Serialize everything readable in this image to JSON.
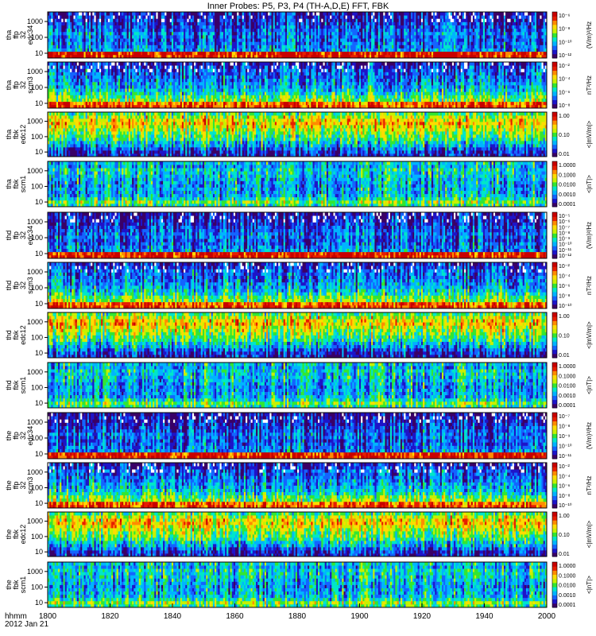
{
  "title": "Inner Probes: P5, P3, P4 (TH-A,D,E) FFT, FBK",
  "time_axis": {
    "label_line1": "hhmm",
    "label_line2": "2012 Jan 21",
    "ticks": [
      "1800",
      "1820",
      "1840",
      "1860",
      "1880",
      "1900",
      "1920",
      "1940",
      "2000"
    ],
    "range": [
      "1800",
      "2000"
    ]
  },
  "panels": [
    {
      "probe": "tha",
      "label": [
        "tha",
        "ffp",
        "32",
        "edc34"
      ],
      "kind": "fft-e",
      "yticks": [
        "1000",
        "100",
        "10"
      ],
      "cbar": [
        "10^-6",
        "10^-8",
        "10^-10",
        "10^-12"
      ],
      "cbar_label": "(V/m)^2/Hz"
    },
    {
      "probe": "tha",
      "label": [
        "tha",
        "ffp",
        "32",
        "scm3"
      ],
      "kind": "fft-b",
      "yticks": [
        "1000",
        "100",
        "10"
      ],
      "cbar": [
        "10^-2",
        "10^-4",
        "10^-6",
        "10^-8"
      ],
      "cbar_label": "nT^2/Hz"
    },
    {
      "probe": "tha",
      "label": [
        "tha",
        "fbk",
        "edc12"
      ],
      "kind": "fbk-e",
      "yticks": [
        "1000",
        "100",
        "10"
      ],
      "cbar": [
        "1.00",
        "0.10",
        "0.01"
      ],
      "cbar_label": "<|mV/m|>"
    },
    {
      "probe": "tha",
      "label": [
        "tha",
        "fbk",
        "scm1"
      ],
      "kind": "fbk-b",
      "yticks": [
        "1000",
        "100",
        "10"
      ],
      "cbar": [
        "1.0000",
        "0.1000",
        "0.0100",
        "0.0010",
        "0.0001"
      ],
      "cbar_label": "<|nT|>"
    },
    {
      "probe": "thd",
      "label": [
        "thd",
        "ffp",
        "32",
        "edc34"
      ],
      "kind": "fft-e",
      "yticks": [
        "1000",
        "100",
        "10"
      ],
      "cbar": [
        "10^-5",
        "10^-6",
        "10^-7",
        "10^-8",
        "10^-9",
        "10^-10",
        "10^-11",
        "10^-12"
      ],
      "cbar_label": "(V/m)^2/Hz"
    },
    {
      "probe": "thd",
      "label": [
        "thd",
        "ffp",
        "32",
        "scm3"
      ],
      "kind": "fft-b",
      "yticks": [
        "1000",
        "100",
        "10"
      ],
      "cbar": [
        "10^-2",
        "10^-4",
        "10^-6",
        "10^-8",
        "10^-10"
      ],
      "cbar_label": "nT^2/Hz"
    },
    {
      "probe": "thd",
      "label": [
        "thd",
        "fbk",
        "edc12"
      ],
      "kind": "fbk-e",
      "yticks": [
        "1000",
        "100",
        "10"
      ],
      "cbar": [
        "1.00",
        "0.10",
        "0.01"
      ],
      "cbar_label": "<|mV/m|>"
    },
    {
      "probe": "thd",
      "label": [
        "thd",
        "fbk",
        "scm1"
      ],
      "kind": "fbk-b",
      "yticks": [
        "1000",
        "100",
        "10"
      ],
      "cbar": [
        "1.0000",
        "0.1000",
        "0.0100",
        "0.0010",
        "0.0001"
      ],
      "cbar_label": "<|nT|>"
    },
    {
      "probe": "the",
      "label": [
        "the",
        "ffp",
        "32",
        "edc34"
      ],
      "kind": "fft-e",
      "yticks": [
        "1000",
        "100",
        "10"
      ],
      "cbar": [
        "10^-7",
        "10^-8",
        "10^-9",
        "10^-10",
        "10^-11"
      ],
      "cbar_label": "(V/m)^2/Hz"
    },
    {
      "probe": "the",
      "label": [
        "the",
        "ffp",
        "32",
        "scm3"
      ],
      "kind": "fft-b",
      "yticks": [
        "1000",
        "100",
        "10"
      ],
      "cbar": [
        "10^-2",
        "10^-4",
        "10^-6",
        "10^-8",
        "10^-10"
      ],
      "cbar_label": "nT^2/Hz"
    },
    {
      "probe": "the",
      "label": [
        "the",
        "fbk",
        "edc12"
      ],
      "kind": "fbk-e",
      "yticks": [
        "1000",
        "100",
        "10"
      ],
      "cbar": [
        "1.00",
        "0.10",
        "0.01"
      ],
      "cbar_label": "<|mV/m|>"
    },
    {
      "probe": "the",
      "label": [
        "the",
        "fbk",
        "scm1"
      ],
      "kind": "fbk-b",
      "yticks": [
        "1000",
        "100",
        "10"
      ],
      "cbar": [
        "1.0000",
        "0.1000",
        "0.0100",
        "0.0010",
        "0.0001"
      ],
      "cbar_label": "<|nT|>"
    }
  ],
  "colors": {
    "colormap": [
      "#3a0066",
      "#1e14c8",
      "#1464ff",
      "#00b4ff",
      "#00e6c8",
      "#32e632",
      "#c8f000",
      "#ffdc00",
      "#ff8c00",
      "#e61e00",
      "#c80000"
    ],
    "missing": "#ffffff",
    "frame": "#000000"
  },
  "chart_data": {
    "type": "heatmap",
    "title": "Inner Probes: P5, P3, P4 (TH-A,D,E) FFT, FBK",
    "x": {
      "label": "hhmm 2012 Jan 21",
      "range": [
        "1800",
        "2000"
      ],
      "ticks": [
        "1800",
        "1820",
        "1840",
        "1860",
        "1880",
        "1900",
        "1920",
        "1940",
        "2000"
      ]
    },
    "y": {
      "scale": "log",
      "range": [
        5,
        4000
      ],
      "ticks": [
        10,
        100,
        1000
      ]
    },
    "colorbar_scale": "log",
    "panels": [
      "tha ffp 32 edc34",
      "tha ffp 32 scm3",
      "tha fbk edc12",
      "tha fbk scm1",
      "thd ffp 32 edc34",
      "thd ffp 32 scm3",
      "thd fbk edc12",
      "thd fbk scm1",
      "the ffp 32 edc34",
      "the ffp 32 scm3",
      "the fbk edc12",
      "the fbk scm1"
    ],
    "grid": false
  }
}
